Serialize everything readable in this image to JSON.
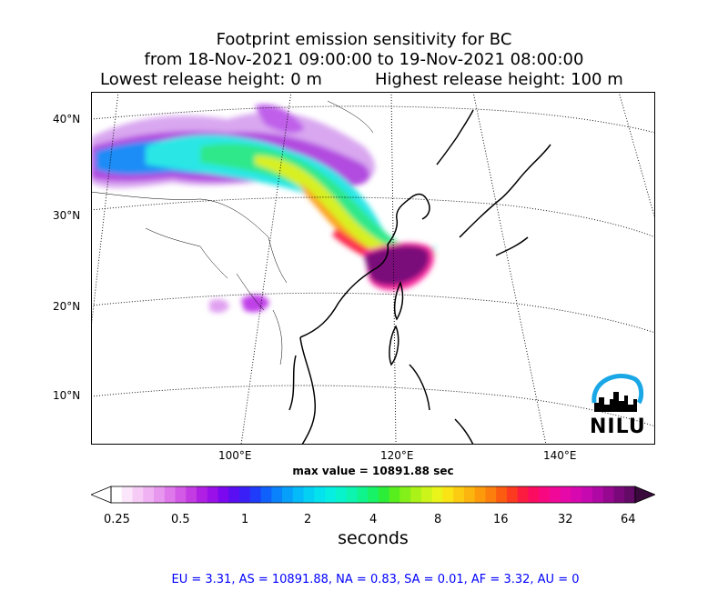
{
  "title": {
    "line1": "Footprint emission sensitivity for BC",
    "line2": "from 18-Nov-2021 09:00:00 to 19-Nov-2021 08:00:00",
    "line3_left": "Lowest release height: 0 m",
    "line3_right": "Highest release height: 100 m"
  },
  "map": {
    "lat_ticks": [
      "40°N",
      "30°N",
      "20°N",
      "10°N"
    ],
    "lon_ticks": [
      "100°E",
      "120°E",
      "140°E"
    ],
    "logo_text": "NILU"
  },
  "max_value_text": "max value = 10891.88 sec",
  "colorbar": {
    "ticks": [
      "0.25",
      "0.5",
      "1",
      "2",
      "4",
      "8",
      "16",
      "32",
      "64"
    ],
    "label": "seconds",
    "colors": [
      "#ffffff",
      "#fbe6fb",
      "#f6ccf7",
      "#f0b2f3",
      "#e897ef",
      "#df78eb",
      "#d35ae6",
      "#c33be2",
      "#b020e4",
      "#9a10e8",
      "#7b08ee",
      "#5a0ef2",
      "#3a20f6",
      "#1f3cfa",
      "#1060fc",
      "#0a82fc",
      "#06a0fa",
      "#04baf8",
      "#04d0f4",
      "#04e2ee",
      "#06eee2",
      "#08f2cc",
      "#0cf4b0",
      "#10f48e",
      "#18f266",
      "#2cee38",
      "#58ee1e",
      "#84f01a",
      "#aaf218",
      "#ccf41a",
      "#eaf41a",
      "#fae416",
      "#fccc12",
      "#fcb40e",
      "#fc9a0c",
      "#fc7e0c",
      "#fc5c10",
      "#fc3a20",
      "#fc1c40",
      "#fc0c60",
      "#f80880",
      "#f00898",
      "#e608a8",
      "#d808b0",
      "#c608b0",
      "#b008a4",
      "#960890",
      "#7a087a",
      "#620a66"
    ]
  },
  "region_stats": "EU = 3.31,  AS = 10891.88,  NA = 0.83,  SA = 0.01,  AF = 3.32,  AU = 0"
}
